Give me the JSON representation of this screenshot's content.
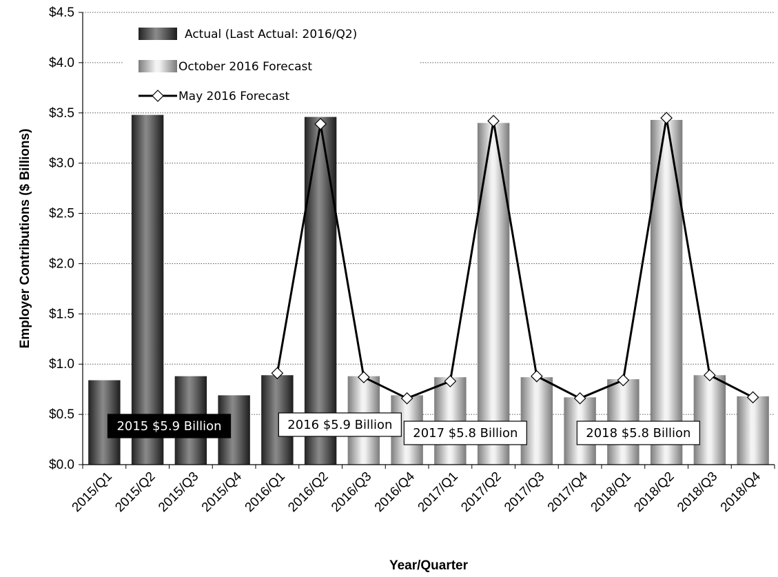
{
  "chart_data": {
    "type": "bar",
    "title": "",
    "xlabel": "Year/Quarter",
    "ylabel": "Employer Contributions ($ Billions)",
    "ylim": [
      0,
      4.5
    ],
    "yticks": [
      "$0.0",
      "$0.5",
      "$1.0",
      "$1.5",
      "$2.0",
      "$2.5",
      "$3.0",
      "$3.5",
      "$4.0",
      "$4.5"
    ],
    "grid": "horizontal dotted",
    "legend_position": "top-left",
    "categories": [
      "2015/Q1",
      "2015/Q2",
      "2015/Q3",
      "2015/Q4",
      "2016/Q1",
      "2016/Q2",
      "2016/Q3",
      "2016/Q4",
      "2017/Q1",
      "2017/Q2",
      "2017/Q3",
      "2017/Q4",
      "2018/Q1",
      "2018/Q2",
      "2018/Q3",
      "2018/Q4"
    ],
    "series": [
      {
        "name": "Actual (Last Actual: 2016/Q2)",
        "kind": "bar",
        "color": "#3a3a3a",
        "values": [
          0.84,
          3.48,
          0.88,
          0.69,
          0.89,
          3.46,
          null,
          null,
          null,
          null,
          null,
          null,
          null,
          null,
          null,
          null
        ]
      },
      {
        "name": "October 2016 Forecast",
        "kind": "bar",
        "color": "#cfcfcf",
        "values": [
          null,
          null,
          null,
          null,
          null,
          null,
          0.88,
          0.69,
          0.87,
          3.4,
          0.87,
          0.67,
          0.85,
          3.43,
          0.89,
          0.68
        ]
      },
      {
        "name": "May 2016 Forecast",
        "kind": "line",
        "color": "#000000",
        "values": [
          null,
          null,
          null,
          null,
          0.91,
          3.39,
          0.87,
          0.66,
          0.83,
          3.42,
          0.88,
          0.66,
          0.84,
          3.45,
          0.89,
          0.67
        ]
      }
    ],
    "annotations": [
      {
        "text": "2015 $5.9 Billion",
        "style": "dark"
      },
      {
        "text": "2016 $5.9 Billion",
        "style": "light"
      },
      {
        "text": "2017 $5.8 Billion",
        "style": "light"
      },
      {
        "text": "2018 $5.8 Billion",
        "style": "light"
      }
    ]
  }
}
